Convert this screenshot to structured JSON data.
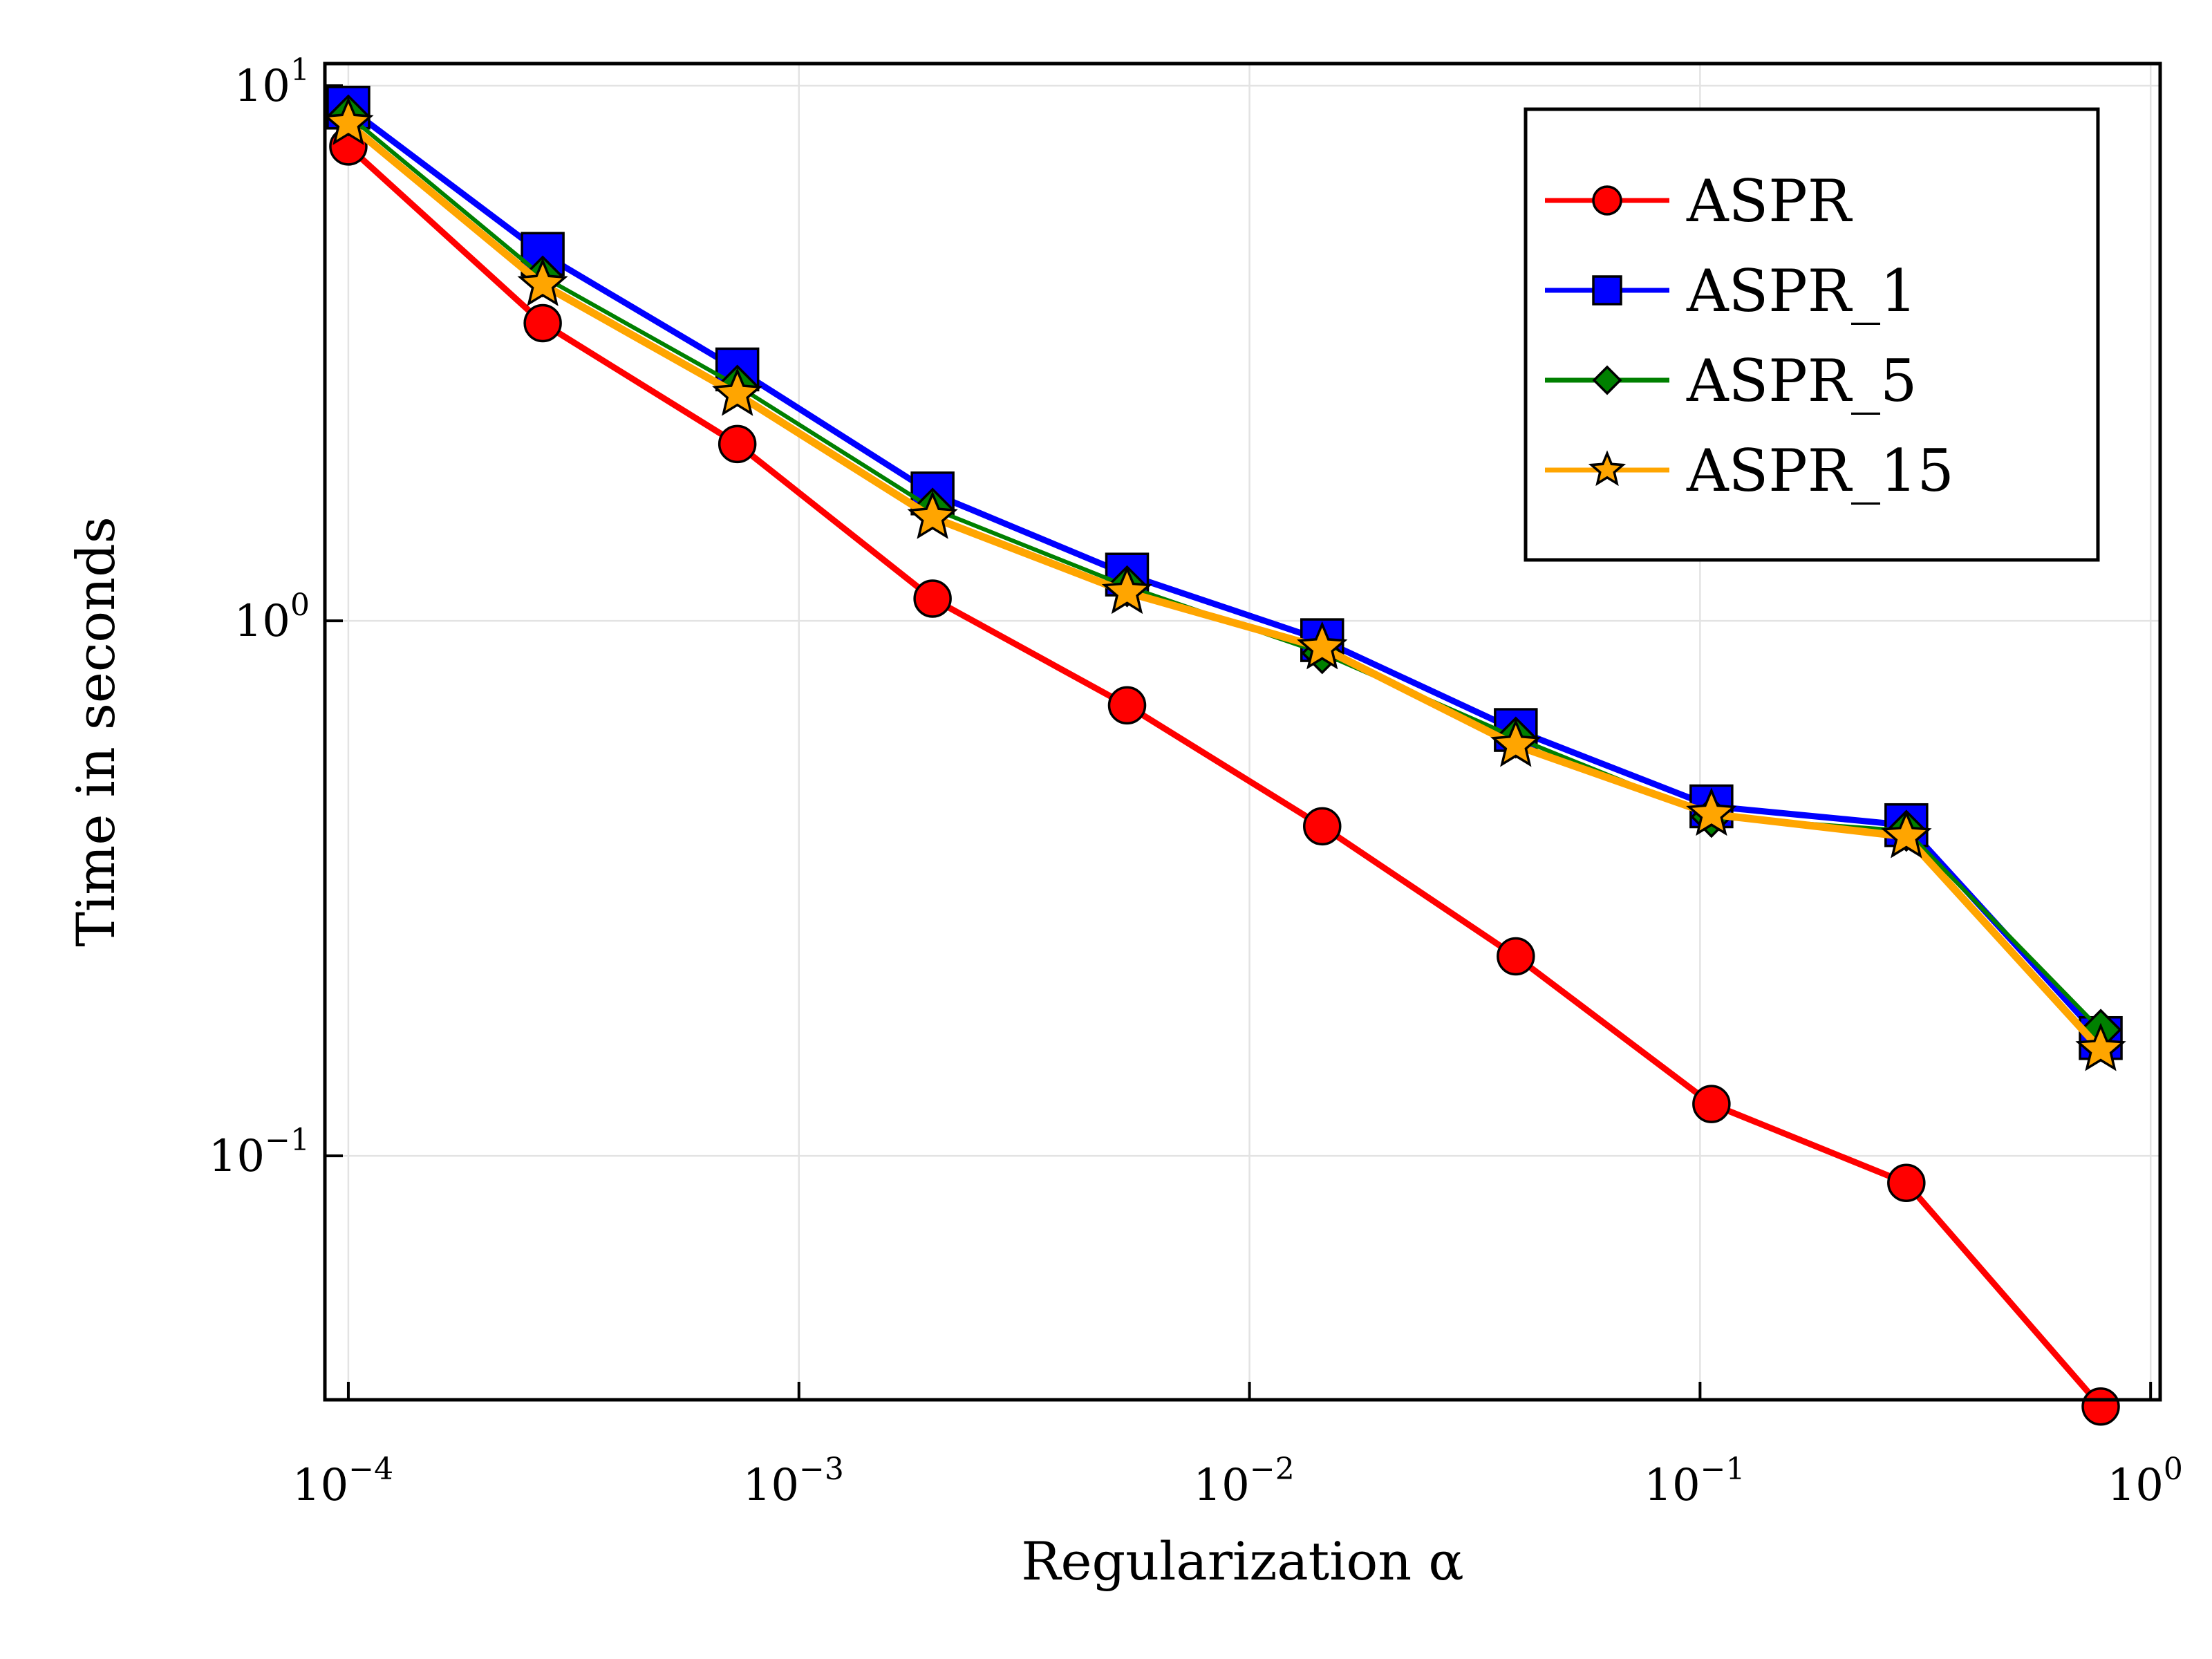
{
  "chart_data": {
    "type": "line",
    "title": "",
    "xlabel": "Regularization α",
    "ylabel": "Time in seconds",
    "xscale": "log",
    "yscale": "log",
    "xlim": [
      8.87e-05,
      1.05
    ],
    "ylim": [
      0.035,
      11.0
    ],
    "grid": true,
    "legend_position": "top-right",
    "x_ticks": [
      {
        "base": "10",
        "exp": "−4",
        "value": 0.0001
      },
      {
        "base": "10",
        "exp": "−3",
        "value": 0.001
      },
      {
        "base": "10",
        "exp": "−2",
        "value": 0.01
      },
      {
        "base": "10",
        "exp": "−1",
        "value": 0.1
      },
      {
        "base": "10",
        "exp": "0",
        "value": 1
      }
    ],
    "y_ticks": [
      {
        "base": "10",
        "exp": "−1",
        "value": 0.1
      },
      {
        "base": "10",
        "exp": "0",
        "value": 1
      },
      {
        "base": "10",
        "exp": "1",
        "value": 10
      }
    ],
    "x": [
      0.0001,
      0.00027,
      0.00073,
      0.00198,
      0.00535,
      0.0145,
      0.039,
      0.106,
      0.287,
      0.775
    ],
    "series": [
      {
        "name": "ASPR",
        "color": "#ff0000",
        "marker": "circle",
        "values": [
          7.7,
          3.6,
          2.14,
          1.1,
          0.695,
          0.413,
          0.236,
          0.125,
          0.089,
          0.034
        ]
      },
      {
        "name": "ASPR_1",
        "color": "#0000ff",
        "marker": "square",
        "values": [
          9.1,
          4.85,
          2.95,
          1.73,
          1.22,
          0.92,
          0.625,
          0.45,
          0.415,
          0.166
        ]
      },
      {
        "name": "ASPR_5",
        "color": "#008000",
        "marker": "diamond",
        "values": [
          8.8,
          4.4,
          2.75,
          1.62,
          1.16,
          0.87,
          0.605,
          0.43,
          0.405,
          0.172
        ]
      },
      {
        "name": "ASPR_15",
        "color": "#ffa500",
        "marker": "star",
        "values": [
          8.5,
          4.25,
          2.65,
          1.56,
          1.13,
          0.89,
          0.585,
          0.435,
          0.395,
          0.158
        ]
      }
    ]
  }
}
